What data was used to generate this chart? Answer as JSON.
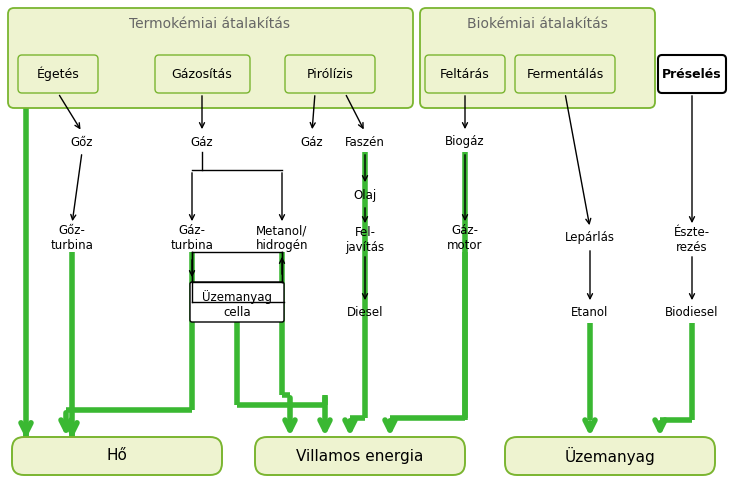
{
  "bg_color": "#ffffff",
  "fig_width": 7.32,
  "fig_height": 4.83,
  "dpi": 100,
  "green": "#3ab832",
  "black": "#000000",
  "light_bg": "#eef3d0",
  "lgreen": "#7ab530",
  "title_thermo": "Termokémiai átalakítás",
  "title_bio": "Biokémiai átalakítás",
  "lbl_egetes": "Égetés",
  "lbl_gazositas": "Gázosítás",
  "lbl_pirolizis": "Pirólízis",
  "lbl_feltaras": "Feltárás",
  "lbl_fermentalas": "Fermentálás",
  "lbl_preseles": "Préselés",
  "lbl_goz": "Gőz",
  "lbl_gaz1": "Gáz",
  "lbl_gaz2": "Gáz",
  "lbl_faszen": "Faszén",
  "lbl_biogaz": "Biogáz",
  "lbl_olaj": "Olaj",
  "lbl_gozturbina": "Gőz-\nturbina",
  "lbl_gazturbina": "Gáz-\nturbina",
  "lbl_metanol": "Metanol/\nhidrogén",
  "lbl_feljavitas": "Fel-\njavítás",
  "lbl_gazmotor": "Gáz-\nmotor",
  "lbl_uzemanyagcella": "Üzemanyag\ncella",
  "lbl_diesel": "Diesel",
  "lbl_lepar": "Lepárlás",
  "lbl_eszterez": "Észte-\nrezés",
  "lbl_etanol": "Etanol",
  "lbl_biodiesel": "Biodiesel",
  "lbl_ho": "Hő",
  "lbl_villamos": "Villamos energia",
  "lbl_uzemanyag": "Üzemanyag"
}
